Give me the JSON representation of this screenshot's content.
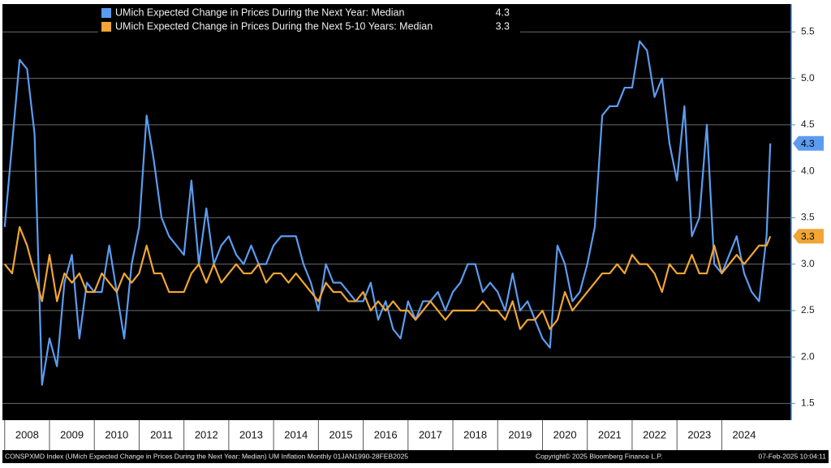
{
  "chart_data": {
    "type": "line",
    "series": [
      {
        "name": "UMich Expected Change in Prices During the Next Year: Median",
        "color": "#5b9cf0",
        "values": [
          3.4,
          4.3,
          5.2,
          5.1,
          4.4,
          1.7,
          2.2,
          1.9,
          2.8,
          3.1,
          2.2,
          2.8,
          2.7,
          2.7,
          3.2,
          2.7,
          2.2,
          3.0,
          3.4,
          4.6,
          4.1,
          3.5,
          3.3,
          3.2,
          3.1,
          3.9,
          3.0,
          3.6,
          3.0,
          3.2,
          3.3,
          3.1,
          3.0,
          3.2,
          3.0,
          3.0,
          3.2,
          3.3,
          3.3,
          3.3,
          3.0,
          2.8,
          2.5,
          3.0,
          2.8,
          2.8,
          2.7,
          2.6,
          2.6,
          2.8,
          2.4,
          2.6,
          2.3,
          2.2,
          2.6,
          2.4,
          2.6,
          2.6,
          2.7,
          2.5,
          2.7,
          2.8,
          3.0,
          3.0,
          2.7,
          2.8,
          2.7,
          2.5,
          2.9,
          2.5,
          2.6,
          2.4,
          2.2,
          2.1,
          3.2,
          3.0,
          2.6,
          2.7,
          3.0,
          3.4,
          4.6,
          4.7,
          4.7,
          4.9,
          4.9,
          5.4,
          5.3,
          4.8,
          5.0,
          4.3,
          3.9,
          4.7,
          3.3,
          3.5,
          4.5,
          3.0,
          2.9,
          3.1,
          3.3,
          2.9,
          2.7,
          2.6,
          3.3,
          4.3
        ]
      },
      {
        "name": "UMich Expected Change in Prices During the Next 5-10 Years: Median",
        "color": "#f0a535",
        "values": [
          3.0,
          2.9,
          3.4,
          3.2,
          2.9,
          2.6,
          3.1,
          2.6,
          2.9,
          2.8,
          2.9,
          2.7,
          2.7,
          2.9,
          2.8,
          2.7,
          2.9,
          2.8,
          2.9,
          3.2,
          2.9,
          2.9,
          2.7,
          2.7,
          2.7,
          2.9,
          3.0,
          2.8,
          3.0,
          2.8,
          2.9,
          3.0,
          2.9,
          2.9,
          3.0,
          2.8,
          2.9,
          2.9,
          2.8,
          2.9,
          2.8,
          2.7,
          2.6,
          2.8,
          2.7,
          2.7,
          2.6,
          2.6,
          2.7,
          2.5,
          2.6,
          2.5,
          2.6,
          2.5,
          2.5,
          2.4,
          2.5,
          2.6,
          2.5,
          2.4,
          2.5,
          2.5,
          2.5,
          2.5,
          2.6,
          2.5,
          2.5,
          2.4,
          2.6,
          2.3,
          2.4,
          2.4,
          2.5,
          2.3,
          2.4,
          2.7,
          2.5,
          2.6,
          2.7,
          2.8,
          2.9,
          2.9,
          3.0,
          2.9,
          3.1,
          3.0,
          3.0,
          2.9,
          2.7,
          3.0,
          2.9,
          2.9,
          3.1,
          2.9,
          2.9,
          3.2,
          2.9,
          3.0,
          3.1,
          3.0,
          3.1,
          3.2,
          3.2,
          3.3
        ]
      }
    ],
    "x": [
      2008.0,
      2008.167,
      2008.333,
      2008.5,
      2008.667,
      2008.833,
      2009.0,
      2009.167,
      2009.333,
      2009.5,
      2009.667,
      2009.833,
      2010.0,
      2010.167,
      2010.333,
      2010.5,
      2010.667,
      2010.833,
      2011.0,
      2011.167,
      2011.333,
      2011.5,
      2011.667,
      2011.833,
      2012.0,
      2012.167,
      2012.333,
      2012.5,
      2012.667,
      2012.833,
      2013.0,
      2013.167,
      2013.333,
      2013.5,
      2013.667,
      2013.833,
      2014.0,
      2014.167,
      2014.333,
      2014.5,
      2014.667,
      2014.833,
      2015.0,
      2015.167,
      2015.333,
      2015.5,
      2015.667,
      2015.833,
      2016.0,
      2016.167,
      2016.333,
      2016.5,
      2016.667,
      2016.833,
      2017.0,
      2017.167,
      2017.333,
      2017.5,
      2017.667,
      2017.833,
      2018.0,
      2018.167,
      2018.333,
      2018.5,
      2018.667,
      2018.833,
      2019.0,
      2019.167,
      2019.333,
      2019.5,
      2019.667,
      2019.833,
      2020.0,
      2020.167,
      2020.333,
      2020.5,
      2020.667,
      2020.833,
      2021.0,
      2021.167,
      2021.333,
      2021.5,
      2021.667,
      2021.833,
      2022.0,
      2022.167,
      2022.333,
      2022.5,
      2022.667,
      2022.833,
      2023.0,
      2023.167,
      2023.333,
      2023.5,
      2023.667,
      2023.833,
      2024.0,
      2024.167,
      2024.333,
      2024.5,
      2024.667,
      2024.833,
      2025.0,
      2025.083
    ],
    "xlim": [
      2007.95,
      2025.55
    ],
    "xticks": [
      {
        "value": 2008,
        "label": "2008"
      },
      {
        "value": 2009,
        "label": "2009"
      },
      {
        "value": 2010,
        "label": "2010"
      },
      {
        "value": 2011,
        "label": "2011"
      },
      {
        "value": 2012,
        "label": "2012"
      },
      {
        "value": 2013,
        "label": "2013"
      },
      {
        "value": 2014,
        "label": "2014"
      },
      {
        "value": 2015,
        "label": "2015"
      },
      {
        "value": 2016,
        "label": "2016"
      },
      {
        "value": 2017,
        "label": "2017"
      },
      {
        "value": 2018,
        "label": "2018"
      },
      {
        "value": 2019,
        "label": "2019"
      },
      {
        "value": 2020,
        "label": "2020"
      },
      {
        "value": 2021,
        "label": "2021"
      },
      {
        "value": 2022,
        "label": "2022"
      },
      {
        "value": 2023,
        "label": "2023"
      },
      {
        "value": 2024,
        "label": "2024"
      }
    ],
    "ylim": [
      1.32,
      5.8
    ],
    "yticks": [
      1.5,
      {
        "value": 2.0,
        "label": "2.0"
      },
      2.5,
      {
        "value": 3.0,
        "label": "3.0"
      },
      3.5,
      {
        "value": 4.0,
        "label": "4.0"
      },
      4.5,
      {
        "value": 5.0,
        "label": "5.0"
      },
      5.5
    ],
    "grid": true,
    "legend": "upper left",
    "footer": {
      "source": "CONSPXMD Index (UMich Expected Change in Prices During the Next Year: Median) UM Inflation  Monthly 01JAN1990-28FEB2025",
      "copyright": "Copyright© 2025 Bloomberg Finance L.P.",
      "timestamp": "07-Feb-2025 10:04:11"
    }
  }
}
